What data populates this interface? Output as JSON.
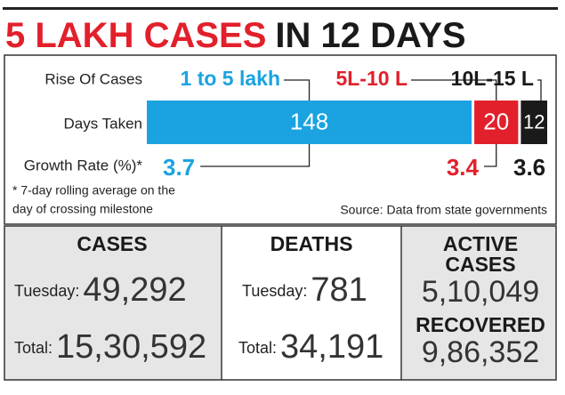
{
  "title": {
    "red": "5 LAKH CASES",
    "black": "IN 12 DAYS"
  },
  "chart_data": {
    "type": "bar",
    "row_labels": [
      "Rise Of Cases",
      "Days Taken",
      "Growth Rate (%)*"
    ],
    "categories": [
      "1 to 5 lakh",
      "5L-10 L",
      "10L-15 L"
    ],
    "values": [
      148,
      20,
      12
    ],
    "colors": [
      "#1aa3e0",
      "#e2202b",
      "#1a1a1a"
    ],
    "growth_rate": [
      3.7,
      3.4,
      3.6
    ]
  },
  "notes": [
    "* 7-day rolling average on the",
    "day of crossing milestone"
  ],
  "source": "Source: Data from state governments",
  "panels": [
    {
      "title": "CASES",
      "rows": [
        {
          "label": "Tuesday:",
          "value": "49,292"
        },
        {
          "label": "Total:",
          "value": "15,30,592"
        }
      ]
    },
    {
      "title": "DEATHS",
      "rows": [
        {
          "label": "Tuesday:",
          "value": "781"
        },
        {
          "label": "Total:",
          "value": "34,191"
        }
      ]
    },
    {
      "sections": [
        {
          "title": [
            "ACTIVE",
            "CASES"
          ],
          "value": "5,10,049"
        },
        {
          "title": [
            "RECOVERED"
          ],
          "value": "9,86,352"
        }
      ]
    }
  ]
}
